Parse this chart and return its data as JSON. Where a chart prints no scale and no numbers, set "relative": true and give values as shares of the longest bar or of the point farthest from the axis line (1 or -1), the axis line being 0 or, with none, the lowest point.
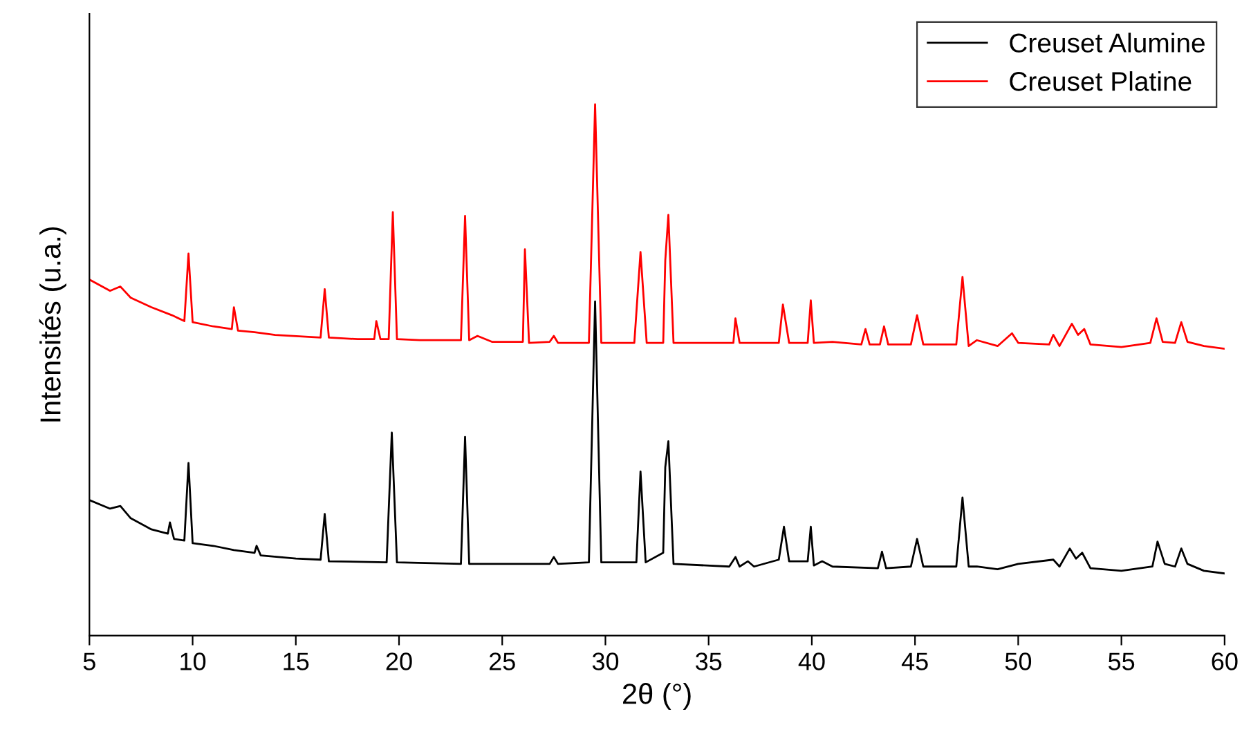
{
  "chart_data": {
    "type": "line",
    "xlabel": "2θ (°)",
    "ylabel": "Intensités (u.a.)",
    "relative": true,
    "xlim": [
      5,
      60
    ],
    "xticks": [
      5,
      10,
      15,
      20,
      25,
      30,
      35,
      40,
      45,
      50,
      55,
      60
    ],
    "tick_labels": "x",
    "grid": false,
    "legend": "top right",
    "line_style": "solid",
    "marker": "none",
    "series": [
      {
        "name": "Creuset Alumine",
        "color": "#000000",
        "x": [
          5,
          6,
          6.5,
          7,
          8,
          8.8,
          8.9,
          9.1,
          9.6,
          9.8,
          10.0,
          11,
          12,
          13,
          13.1,
          13.3,
          15,
          16.2,
          16.4,
          16.6,
          19.4,
          19.65,
          19.9,
          23.0,
          23.2,
          23.4,
          26,
          27.3,
          27.5,
          27.7,
          29.2,
          29.5,
          29.8,
          31.5,
          31.7,
          31.95,
          32.8,
          32.9,
          33.05,
          33.3,
          36,
          36.3,
          36.5,
          36.9,
          37.2,
          38.4,
          38.65,
          38.9,
          39.8,
          39.95,
          40.1,
          40.5,
          41,
          43.2,
          43.4,
          43.6,
          44.8,
          45.1,
          45.4,
          47.0,
          47.3,
          47.6,
          48,
          49,
          50,
          51.7,
          52,
          52.5,
          52.8,
          53.1,
          53.5,
          55,
          56.5,
          56.75,
          57.1,
          57.6,
          57.9,
          58.2,
          59,
          60
        ],
        "values": [
          0.255,
          0.239,
          0.244,
          0.221,
          0.2,
          0.192,
          0.213,
          0.182,
          0.179,
          0.325,
          0.174,
          0.169,
          0.161,
          0.156,
          0.169,
          0.151,
          0.145,
          0.143,
          0.229,
          0.14,
          0.138,
          0.382,
          0.138,
          0.135,
          0.374,
          0.135,
          0.135,
          0.135,
          0.148,
          0.135,
          0.138,
          0.629,
          0.138,
          0.138,
          0.309,
          0.138,
          0.156,
          0.317,
          0.366,
          0.135,
          0.13,
          0.148,
          0.13,
          0.14,
          0.13,
          0.143,
          0.205,
          0.14,
          0.14,
          0.205,
          0.132,
          0.14,
          0.13,
          0.127,
          0.158,
          0.127,
          0.13,
          0.182,
          0.13,
          0.13,
          0.26,
          0.13,
          0.13,
          0.125,
          0.135,
          0.143,
          0.13,
          0.164,
          0.145,
          0.156,
          0.127,
          0.122,
          0.13,
          0.177,
          0.135,
          0.13,
          0.164,
          0.135,
          0.122,
          0.117
        ]
      },
      {
        "name": "Creuset Platine",
        "color": "#ff0000",
        "x": [
          5,
          6,
          6.5,
          7,
          8,
          9,
          9.6,
          9.8,
          10.0,
          11,
          11.9,
          12.0,
          12.2,
          13,
          14,
          16.2,
          16.4,
          16.6,
          18,
          18.8,
          18.9,
          19.1,
          19.5,
          19.7,
          19.9,
          21,
          23,
          23.2,
          23.4,
          23.8,
          24.5,
          26.0,
          26.1,
          26.3,
          27.3,
          27.5,
          27.7,
          29.2,
          29.5,
          29.8,
          31.4,
          31.7,
          32.0,
          32.8,
          32.9,
          33.05,
          33.3,
          35,
          36.2,
          36.3,
          36.5,
          38.4,
          38.6,
          38.9,
          39.8,
          39.95,
          40.1,
          41,
          42.4,
          42.6,
          42.8,
          43.3,
          43.5,
          43.7,
          44.8,
          45.1,
          45.4,
          47.0,
          47.3,
          47.6,
          48,
          49,
          49.7,
          50,
          51.5,
          51.7,
          52,
          52.6,
          52.9,
          53.2,
          53.5,
          55,
          56.4,
          56.7,
          57.0,
          57.6,
          57.9,
          58.2,
          59,
          60
        ],
        "values": [
          0.67,
          0.649,
          0.657,
          0.636,
          0.618,
          0.603,
          0.592,
          0.719,
          0.59,
          0.582,
          0.577,
          0.618,
          0.574,
          0.571,
          0.566,
          0.561,
          0.652,
          0.561,
          0.558,
          0.558,
          0.592,
          0.558,
          0.558,
          0.797,
          0.558,
          0.556,
          0.556,
          0.79,
          0.556,
          0.564,
          0.553,
          0.553,
          0.727,
          0.551,
          0.553,
          0.564,
          0.551,
          0.551,
          1,
          0.551,
          0.551,
          0.722,
          0.551,
          0.551,
          0.706,
          0.792,
          0.551,
          0.551,
          0.551,
          0.597,
          0.551,
          0.551,
          0.623,
          0.551,
          0.551,
          0.631,
          0.551,
          0.553,
          0.548,
          0.577,
          0.548,
          0.548,
          0.582,
          0.548,
          0.548,
          0.603,
          0.548,
          0.548,
          0.675,
          0.545,
          0.556,
          0.545,
          0.569,
          0.551,
          0.548,
          0.566,
          0.545,
          0.587,
          0.566,
          0.577,
          0.548,
          0.543,
          0.551,
          0.597,
          0.553,
          0.551,
          0.59,
          0.553,
          0.545,
          0.54
        ]
      }
    ]
  }
}
